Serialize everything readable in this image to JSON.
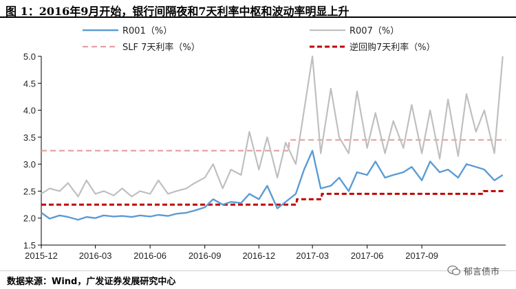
{
  "header": {
    "title": "图 1：2016年9月开始，银行间隔夜和7天利率中枢和波动率明显上升"
  },
  "footer": {
    "source": "数据来源：Wind，广发证券发展研究中心",
    "watermark": "郁言债市"
  },
  "chart_data": {
    "type": "line",
    "title": "",
    "xlabel": "",
    "ylabel": "",
    "ylim": [
      1.5,
      5.0
    ],
    "yticks": [
      "1.5",
      "2.0",
      "2.5",
      "3.0",
      "3.5",
      "4.0",
      "4.5",
      "5.0"
    ],
    "xlim": [
      "2015-12-01",
      "2018-01-20"
    ],
    "xticks": [
      "2015-12",
      "2016-03",
      "2016-06",
      "2016-09",
      "2016-12",
      "2017-03",
      "2017-06",
      "2017-09"
    ],
    "grid": false,
    "legend_position": "top",
    "colors": {
      "R001": "#5b9bd5",
      "R007": "#bfbfbf",
      "SLF": "#e6a0a0",
      "reverse_repo": "#c00000"
    },
    "series": [
      {
        "key": "R001",
        "name": "R001（%）",
        "style": "solid",
        "x": [
          "2015-12-01",
          "2015-12-15",
          "2016-01-01",
          "2016-01-15",
          "2016-02-01",
          "2016-02-15",
          "2016-03-01",
          "2016-03-15",
          "2016-04-01",
          "2016-04-15",
          "2016-05-01",
          "2016-05-15",
          "2016-06-01",
          "2016-06-15",
          "2016-07-01",
          "2016-07-15",
          "2016-08-01",
          "2016-08-15",
          "2016-09-01",
          "2016-09-15",
          "2016-10-01",
          "2016-10-15",
          "2016-11-01",
          "2016-11-15",
          "2016-12-01",
          "2016-12-15",
          "2017-01-01",
          "2017-01-15",
          "2017-02-01",
          "2017-02-15",
          "2017-03-01",
          "2017-03-15",
          "2017-04-01",
          "2017-04-15",
          "2017-05-01",
          "2017-05-15",
          "2017-06-01",
          "2017-06-15",
          "2017-07-01",
          "2017-07-15",
          "2017-08-01",
          "2017-08-15",
          "2017-09-01",
          "2017-09-15",
          "2017-10-01",
          "2017-10-15",
          "2017-11-01",
          "2017-11-15",
          "2017-12-01",
          "2017-12-15",
          "2018-01-01",
          "2018-01-15"
        ],
        "values": [
          2.1,
          1.99,
          2.05,
          2.02,
          1.97,
          2.02,
          2.0,
          2.05,
          2.03,
          2.04,
          2.02,
          2.05,
          2.03,
          2.06,
          2.04,
          2.08,
          2.1,
          2.14,
          2.2,
          2.35,
          2.25,
          2.3,
          2.28,
          2.45,
          2.35,
          2.6,
          2.18,
          2.3,
          2.45,
          2.9,
          3.25,
          2.55,
          2.6,
          2.75,
          2.5,
          2.85,
          2.8,
          3.05,
          2.75,
          2.8,
          2.85,
          2.95,
          2.7,
          3.05,
          2.85,
          2.9,
          2.75,
          3.0,
          2.95,
          2.9,
          2.7,
          2.8
        ]
      },
      {
        "key": "R007",
        "name": "R007（%）",
        "style": "solid",
        "x": [
          "2015-12-01",
          "2015-12-15",
          "2016-01-01",
          "2016-01-15",
          "2016-02-01",
          "2016-02-15",
          "2016-03-01",
          "2016-03-15",
          "2016-04-01",
          "2016-04-15",
          "2016-05-01",
          "2016-05-15",
          "2016-06-01",
          "2016-06-15",
          "2016-07-01",
          "2016-07-15",
          "2016-08-01",
          "2016-08-15",
          "2016-09-01",
          "2016-09-15",
          "2016-10-01",
          "2016-10-15",
          "2016-11-01",
          "2016-11-15",
          "2016-12-01",
          "2016-12-15",
          "2017-01-01",
          "2017-01-15",
          "2017-02-01",
          "2017-02-15",
          "2017-03-01",
          "2017-03-15",
          "2017-04-01",
          "2017-04-15",
          "2017-05-01",
          "2017-05-15",
          "2017-06-01",
          "2017-06-15",
          "2017-07-01",
          "2017-07-15",
          "2017-08-01",
          "2017-08-15",
          "2017-09-01",
          "2017-09-15",
          "2017-10-01",
          "2017-10-15",
          "2017-11-01",
          "2017-11-15",
          "2017-12-01",
          "2017-12-15",
          "2018-01-01",
          "2018-01-15"
        ],
        "values": [
          2.45,
          2.55,
          2.5,
          2.65,
          2.4,
          2.7,
          2.45,
          2.5,
          2.42,
          2.55,
          2.4,
          2.5,
          2.45,
          2.7,
          2.45,
          2.5,
          2.55,
          2.65,
          2.75,
          3.0,
          2.55,
          2.9,
          2.8,
          3.6,
          2.9,
          3.5,
          2.75,
          3.4,
          3.0,
          4.0,
          5.0,
          3.2,
          4.4,
          3.5,
          3.2,
          4.35,
          3.3,
          3.95,
          3.2,
          3.8,
          3.3,
          4.1,
          3.2,
          4.0,
          3.1,
          4.2,
          3.15,
          4.3,
          3.6,
          4.0,
          3.2,
          5.0
        ]
      },
      {
        "key": "SLF",
        "name": "SLF 7天利率（%）",
        "style": "dashed",
        "x": [
          "2015-12-01",
          "2017-01-20",
          "2017-01-21",
          "2018-01-20"
        ],
        "values": [
          3.25,
          3.25,
          3.45,
          3.45
        ]
      },
      {
        "key": "reverse_repo",
        "name": "逆回购7天利率（%）",
        "style": "dashed",
        "x": [
          "2015-12-01",
          "2017-02-02",
          "2017-02-03",
          "2017-03-16",
          "2017-03-17",
          "2017-12-13",
          "2017-12-14",
          "2018-01-20"
        ],
        "values": [
          2.25,
          2.25,
          2.35,
          2.35,
          2.45,
          2.45,
          2.5,
          2.5
        ]
      }
    ]
  }
}
